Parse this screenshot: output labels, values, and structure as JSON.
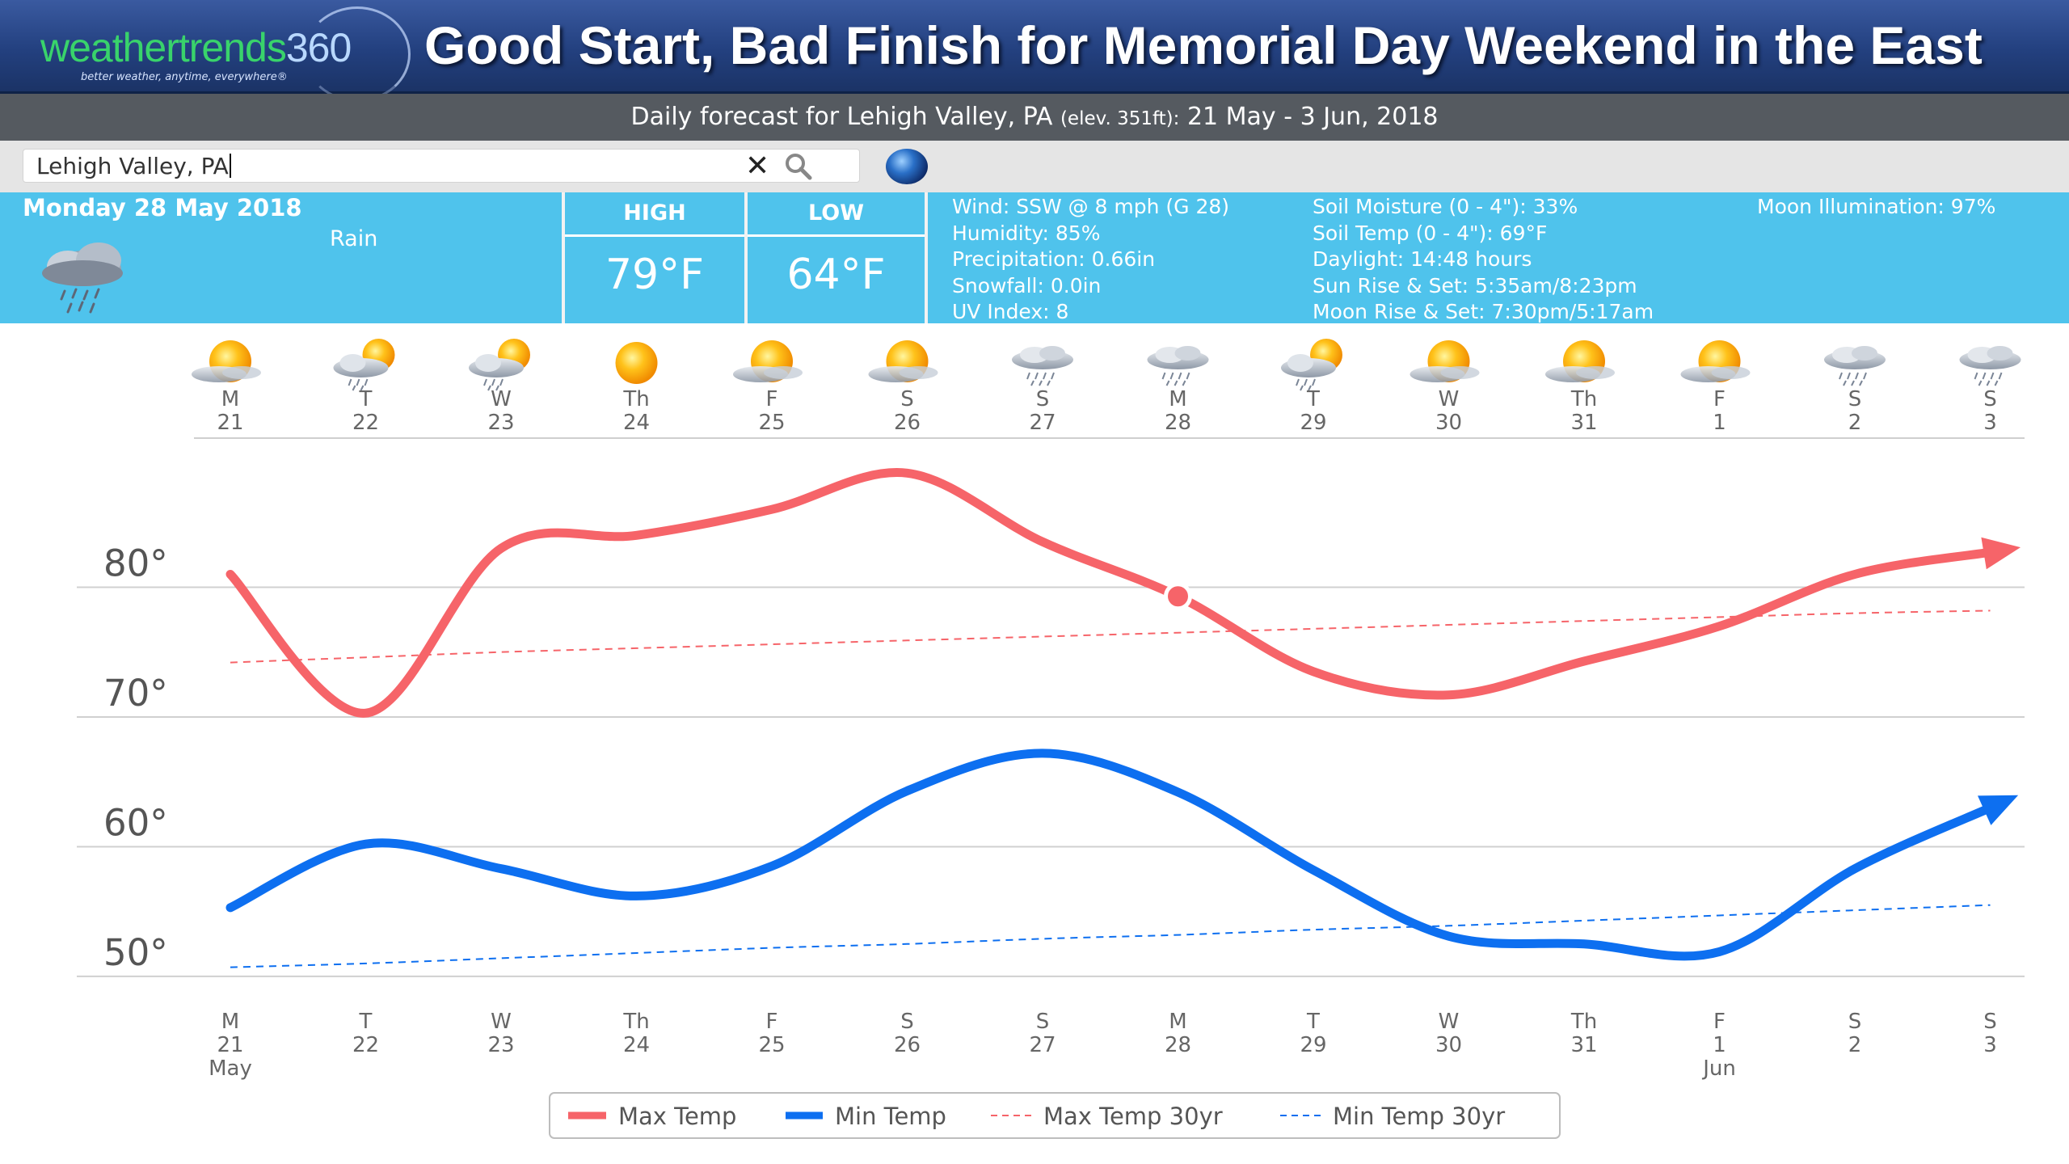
{
  "header": {
    "logo_text": "weathertrends",
    "logo_number": "360",
    "logo_tagline": "better weather, anytime, everywhere®",
    "title": "Good Start, Bad Finish for Memorial Day Weekend in the East",
    "subtitle_prefix": "Daily forecast for Lehigh Valley, PA",
    "subtitle_elev": "(elev. 351ft):",
    "subtitle_range": "21 May - 3 Jun, 2018"
  },
  "search": {
    "value": "Lehigh Valley, PA"
  },
  "current": {
    "date": "Monday 28 May 2018",
    "condition": "Rain",
    "condition_icon": "cloud-rain-icon",
    "high_label": "HIGH",
    "high_value": "79°F",
    "low_label": "LOW",
    "low_value": "64°F",
    "details_col1": [
      "Wind: SSW @ 8 mph (G 28)",
      "Humidity: 85%",
      "Precipitation: 0.66in",
      "Snowfall: 0.0in",
      "UV Index: 8"
    ],
    "details_col2": [
      "Soil Moisture (0 - 4\"): 33%",
      "Soil Temp (0 - 4\"): 69°F",
      "Daylight: 14:48 hours",
      "Sun Rise & Set: 5:35am/8:23pm",
      "Moon Rise & Set: 7:30pm/5:17am"
    ],
    "details_col3": [
      "Moon Illumination: 97%"
    ]
  },
  "days": [
    {
      "dow": "M",
      "date": "21",
      "month": "May",
      "icon": "partly-cloudy-icon"
    },
    {
      "dow": "T",
      "date": "22",
      "month": "",
      "icon": "sun-cloud-rain-icon"
    },
    {
      "dow": "W",
      "date": "23",
      "month": "",
      "icon": "sun-cloud-rain-icon"
    },
    {
      "dow": "Th",
      "date": "24",
      "month": "",
      "icon": "sunny-icon"
    },
    {
      "dow": "F",
      "date": "25",
      "month": "",
      "icon": "partly-cloudy-icon"
    },
    {
      "dow": "S",
      "date": "26",
      "month": "",
      "icon": "partly-cloudy-icon"
    },
    {
      "dow": "S",
      "date": "27",
      "month": "",
      "icon": "cloud-rain-icon"
    },
    {
      "dow": "M",
      "date": "28",
      "month": "",
      "icon": "cloud-rain-icon"
    },
    {
      "dow": "T",
      "date": "29",
      "month": "",
      "icon": "sun-cloud-rain-icon"
    },
    {
      "dow": "W",
      "date": "30",
      "month": "",
      "icon": "partly-cloudy-icon"
    },
    {
      "dow": "Th",
      "date": "31",
      "month": "",
      "icon": "partly-cloudy-icon"
    },
    {
      "dow": "F",
      "date": "1",
      "month": "Jun",
      "icon": "partly-cloudy-icon"
    },
    {
      "dow": "S",
      "date": "2",
      "month": "",
      "icon": "cloud-rain-icon"
    },
    {
      "dow": "S",
      "date": "3",
      "month": "",
      "icon": "cloud-rain-icon"
    }
  ],
  "colors": {
    "max": "#f66469",
    "min": "#0d6ff0",
    "banner": "#23407f",
    "panel": "#4fc3ec"
  },
  "chart_data": {
    "type": "line",
    "categories": [
      "M 21",
      "T 22",
      "W 23",
      "Th 24",
      "F 25",
      "S 26",
      "S 27",
      "M 28",
      "T 29",
      "W 30",
      "Th 31",
      "F 1",
      "S 2",
      "S 3"
    ],
    "ylim": [
      48,
      91
    ],
    "yticks": [
      50,
      60,
      70,
      80
    ],
    "ytick_labels": [
      "50°",
      "60°",
      "70°",
      "80°"
    ],
    "highlight_index": 7,
    "series": [
      {
        "name": "Max Temp",
        "values": [
          81,
          70.3,
          83,
          84,
          86,
          88.8,
          83.5,
          79.3,
          73.5,
          71.7,
          74.3,
          77,
          81,
          82.7
        ],
        "style": "solid"
      },
      {
        "name": "Min Temp",
        "values": [
          55.3,
          60.2,
          58.3,
          56.2,
          58.5,
          64.3,
          67.2,
          64.2,
          58.2,
          53.1,
          52.5,
          51.9,
          58.3,
          63
        ],
        "style": "solid"
      },
      {
        "name": "Max Temp 30yr",
        "values": [
          74.2,
          74.6,
          75,
          75.3,
          75.6,
          75.9,
          76.2,
          76.5,
          76.8,
          77.1,
          77.4,
          77.7,
          78,
          78.2
        ],
        "style": "dashed"
      },
      {
        "name": "Min Temp 30yr",
        "values": [
          50.7,
          51,
          51.4,
          51.8,
          52.2,
          52.5,
          52.9,
          53.2,
          53.6,
          53.9,
          54.3,
          54.7,
          55.1,
          55.5
        ],
        "style": "dashed"
      }
    ]
  }
}
